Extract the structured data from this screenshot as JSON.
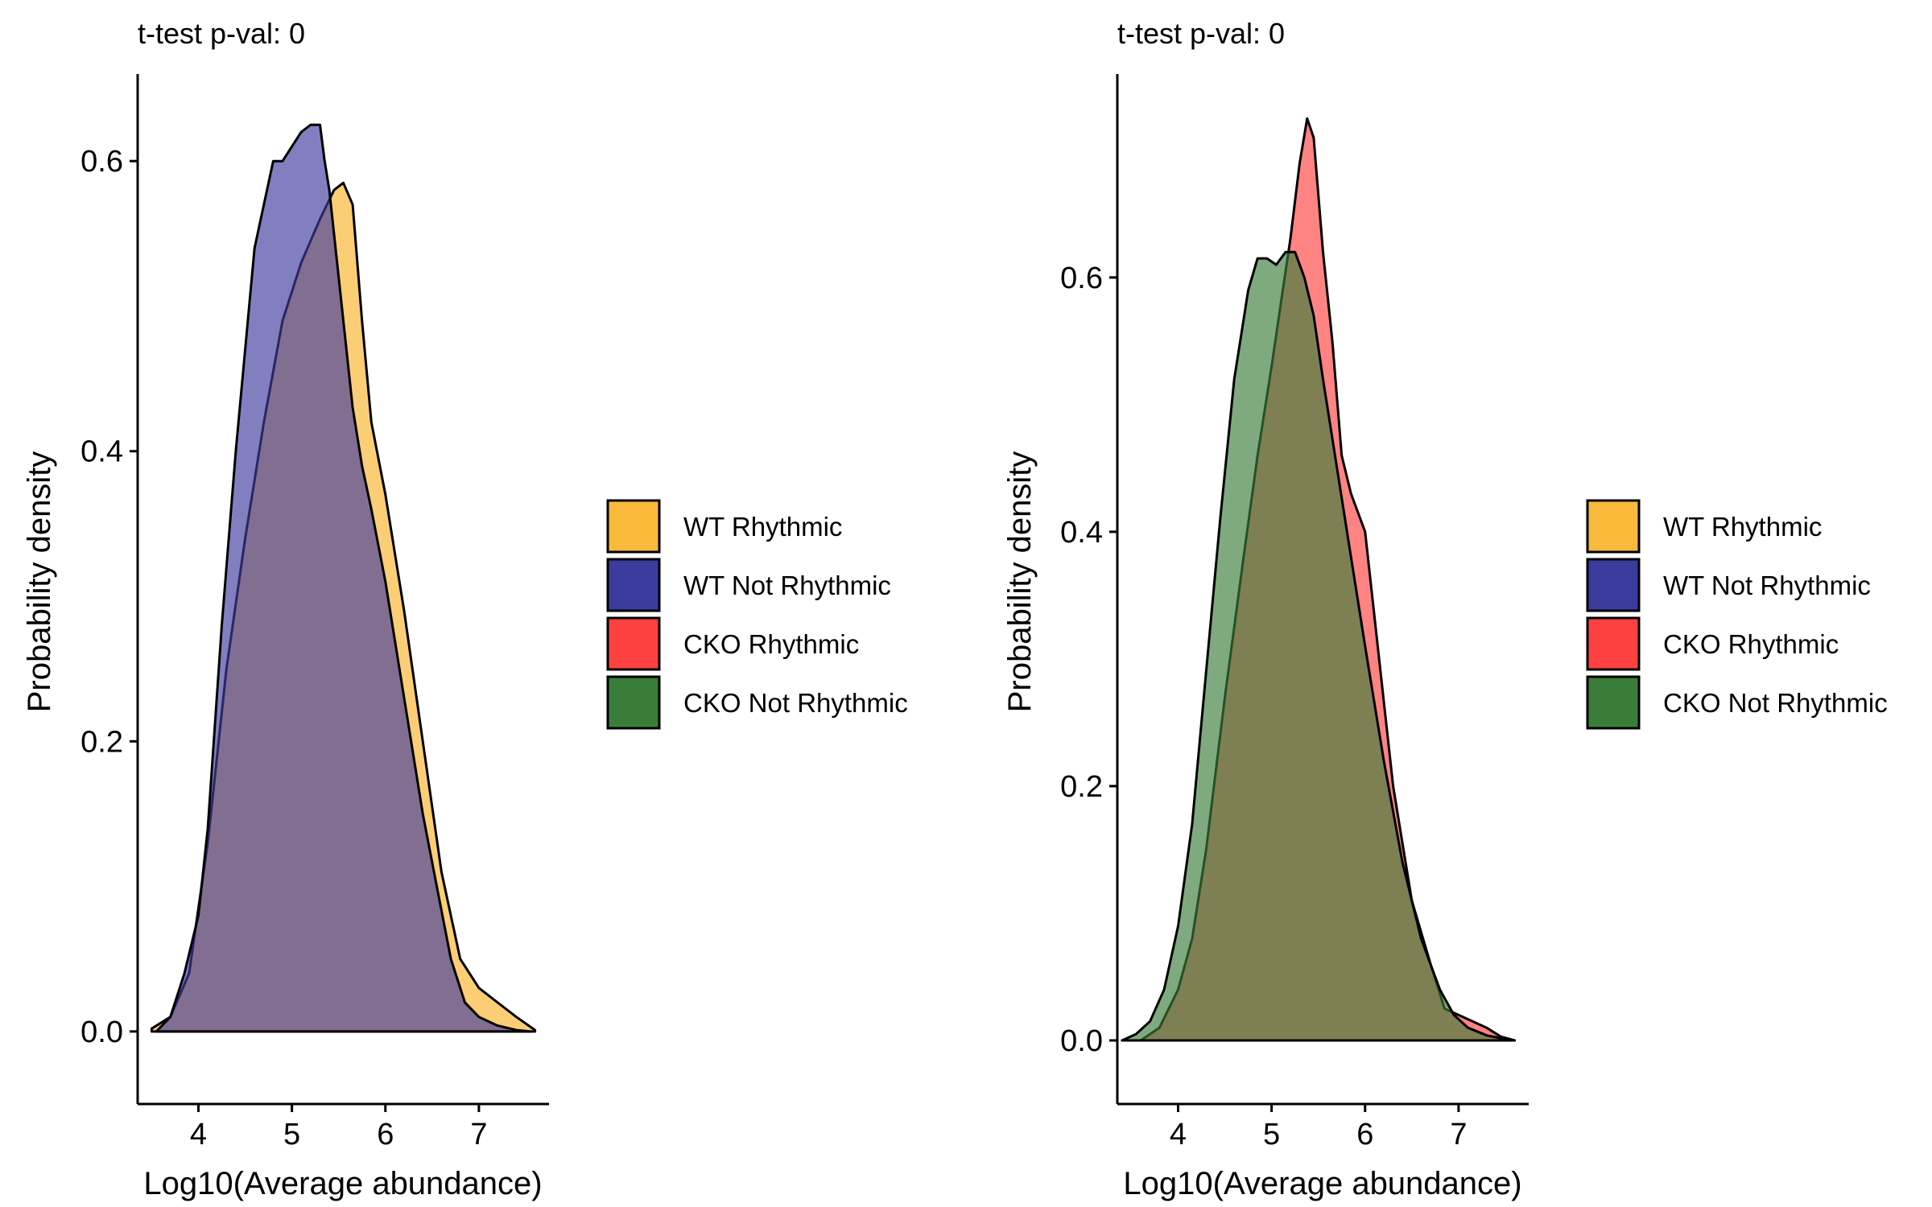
{
  "chart_data": [
    {
      "type": "area",
      "title": "t-test p-val:  0",
      "xlabel": "Log10(Average abundance)",
      "ylabel": "Probability density",
      "xlim": [
        3.35,
        7.75
      ],
      "ylim": [
        -0.05,
        0.66
      ],
      "xticks": [
        4,
        5,
        6,
        7
      ],
      "yticks": [
        0.0,
        0.2,
        0.4,
        0.6
      ],
      "ytick_labels": [
        "0.0",
        "0.2",
        "0.4",
        "0.6"
      ],
      "grid": false,
      "legend_position": "right",
      "series": [
        {
          "name": "WT Rhythmic",
          "color": "#f9b93b",
          "opacity": 0.7,
          "x": [
            3.5,
            3.7,
            3.9,
            4.1,
            4.3,
            4.5,
            4.7,
            4.9,
            5.1,
            5.3,
            5.45,
            5.55,
            5.65,
            5.75,
            5.85,
            6.0,
            6.2,
            6.4,
            6.6,
            6.8,
            7.0,
            7.2,
            7.4,
            7.6
          ],
          "y": [
            0.002,
            0.01,
            0.04,
            0.13,
            0.25,
            0.34,
            0.42,
            0.49,
            0.53,
            0.56,
            0.58,
            0.585,
            0.57,
            0.49,
            0.42,
            0.37,
            0.29,
            0.2,
            0.11,
            0.05,
            0.03,
            0.02,
            0.01,
            0.001
          ]
        },
        {
          "name": "WT Not Rhythmic",
          "color": "#3f3ba0",
          "opacity": 0.65,
          "x": [
            3.55,
            3.7,
            3.85,
            4.0,
            4.1,
            4.25,
            4.4,
            4.6,
            4.8,
            4.9,
            5.0,
            5.1,
            5.2,
            5.3,
            5.35,
            5.4,
            5.45,
            5.55,
            5.65,
            5.75,
            5.85,
            6.0,
            6.2,
            6.4,
            6.55,
            6.7,
            6.85,
            7.0,
            7.2,
            7.4,
            7.55
          ],
          "y": [
            0.0,
            0.01,
            0.04,
            0.08,
            0.14,
            0.28,
            0.4,
            0.54,
            0.6,
            0.6,
            0.61,
            0.62,
            0.625,
            0.625,
            0.6,
            0.58,
            0.55,
            0.49,
            0.43,
            0.39,
            0.36,
            0.31,
            0.23,
            0.15,
            0.1,
            0.05,
            0.02,
            0.01,
            0.004,
            0.001,
            0.0
          ]
        }
      ]
    },
    {
      "type": "area",
      "title": "t-test p-val:  0",
      "xlabel": "Log10(Average abundance)",
      "ylabel": "Probability density",
      "xlim": [
        3.35,
        7.75
      ],
      "ylim": [
        -0.05,
        0.76
      ],
      "xticks": [
        4,
        5,
        6,
        7
      ],
      "yticks": [
        0.0,
        0.2,
        0.4,
        0.6
      ],
      "ytick_labels": [
        "0.0",
        "0.2",
        "0.4",
        "0.6"
      ],
      "grid": false,
      "legend_position": "right",
      "series": [
        {
          "name": "CKO Rhythmic",
          "color": "#ff4040",
          "opacity": 0.65,
          "x": [
            3.6,
            3.8,
            4.0,
            4.15,
            4.3,
            4.5,
            4.7,
            4.85,
            5.0,
            5.1,
            5.2,
            5.3,
            5.38,
            5.45,
            5.55,
            5.65,
            5.75,
            5.85,
            6.0,
            6.15,
            6.3,
            6.5,
            6.7,
            6.85,
            7.0,
            7.15,
            7.3,
            7.45,
            7.6
          ],
          "y": [
            0.0,
            0.01,
            0.04,
            0.08,
            0.15,
            0.27,
            0.38,
            0.46,
            0.53,
            0.58,
            0.63,
            0.69,
            0.725,
            0.71,
            0.62,
            0.55,
            0.46,
            0.43,
            0.4,
            0.3,
            0.2,
            0.11,
            0.06,
            0.025,
            0.02,
            0.015,
            0.01,
            0.003,
            0.0
          ]
        },
        {
          "name": "CKO Not Rhythmic",
          "color": "#3a7d3a",
          "opacity": 0.65,
          "x": [
            3.4,
            3.55,
            3.7,
            3.85,
            4.0,
            4.15,
            4.3,
            4.45,
            4.6,
            4.75,
            4.85,
            4.95,
            5.05,
            5.15,
            5.25,
            5.35,
            5.45,
            5.55,
            5.7,
            5.85,
            6.0,
            6.2,
            6.4,
            6.6,
            6.8,
            6.95,
            7.1,
            7.3,
            7.5,
            7.6
          ],
          "y": [
            0.0,
            0.005,
            0.015,
            0.04,
            0.09,
            0.17,
            0.29,
            0.41,
            0.52,
            0.59,
            0.615,
            0.615,
            0.61,
            0.62,
            0.62,
            0.6,
            0.57,
            0.52,
            0.45,
            0.38,
            0.31,
            0.22,
            0.14,
            0.08,
            0.04,
            0.02,
            0.01,
            0.004,
            0.001,
            0.0
          ]
        }
      ]
    }
  ],
  "legend": {
    "items": [
      {
        "label": "WT Rhythmic",
        "color": "#f9b93b"
      },
      {
        "label": "WT Not Rhythmic",
        "color": "#3b3b9e"
      },
      {
        "label": "CKO Rhythmic",
        "color": "#ff4040"
      },
      {
        "label": "CKO Not Rhythmic",
        "color": "#3a7d3a"
      }
    ]
  }
}
